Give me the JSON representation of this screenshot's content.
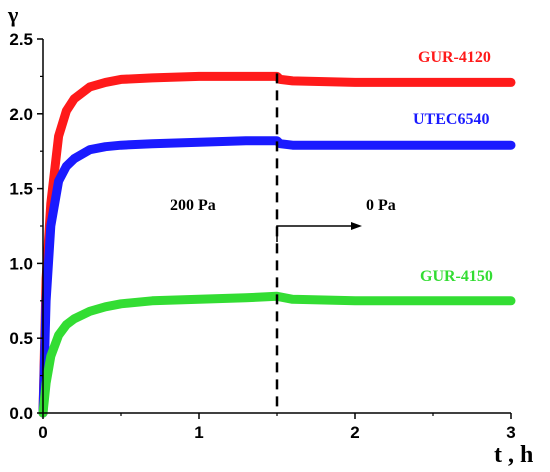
{
  "chart_data": {
    "type": "line",
    "title": "",
    "xlabel": "t , h",
    "ylabel": "γ",
    "xlim": [
      0,
      3
    ],
    "ylim": [
      0,
      2.5
    ],
    "x_ticks": [
      "0",
      "1",
      "2",
      "3"
    ],
    "y_ticks": [
      "0.0",
      "0.5",
      "1.0",
      "1.5",
      "2.0",
      "2.5"
    ],
    "grid": false,
    "series": [
      {
        "name": "GUR-4120",
        "color": "#ff1a1a",
        "x": [
          0,
          0.02,
          0.05,
          0.1,
          0.15,
          0.2,
          0.3,
          0.4,
          0.5,
          0.7,
          1.0,
          1.3,
          1.5,
          1.52,
          1.6,
          2.0,
          2.5,
          3.0
        ],
        "y": [
          0,
          0.9,
          1.4,
          1.85,
          2.02,
          2.1,
          2.18,
          2.21,
          2.23,
          2.24,
          2.25,
          2.25,
          2.25,
          2.23,
          2.22,
          2.21,
          2.21,
          2.21
        ]
      },
      {
        "name": "UTEC6540",
        "color": "#1a1aff",
        "x": [
          0,
          0.02,
          0.05,
          0.1,
          0.15,
          0.2,
          0.3,
          0.4,
          0.5,
          0.7,
          1.0,
          1.3,
          1.5,
          1.52,
          1.6,
          2.0,
          2.5,
          3.0
        ],
        "y": [
          0,
          0.75,
          1.25,
          1.55,
          1.65,
          1.7,
          1.76,
          1.78,
          1.79,
          1.8,
          1.81,
          1.82,
          1.82,
          1.8,
          1.79,
          1.79,
          1.79,
          1.79
        ]
      },
      {
        "name": "GUR-4150",
        "color": "#33dd33",
        "x": [
          0,
          0.02,
          0.05,
          0.1,
          0.15,
          0.2,
          0.3,
          0.4,
          0.5,
          0.7,
          1.0,
          1.3,
          1.5,
          1.55,
          1.6,
          2.0,
          2.5,
          3.0
        ],
        "y": [
          0,
          0.2,
          0.38,
          0.52,
          0.59,
          0.63,
          0.68,
          0.71,
          0.73,
          0.75,
          0.76,
          0.77,
          0.78,
          0.77,
          0.76,
          0.75,
          0.75,
          0.75
        ]
      }
    ],
    "annotations": [
      {
        "text": "200 Pa"
      },
      {
        "text": "0 Pa"
      }
    ],
    "divider_x": 1.5
  }
}
